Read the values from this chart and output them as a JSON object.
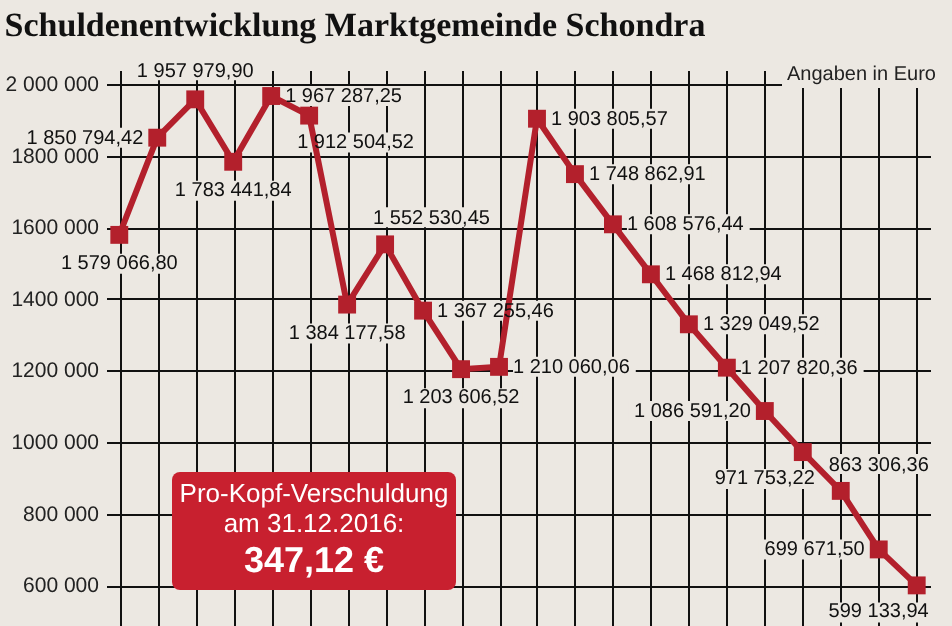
{
  "chart_data": {
    "type": "line",
    "title": "Schuldenentwicklung Marktgemeinde Schondra",
    "categories": [
      null,
      null,
      null,
      null,
      null,
      null,
      null,
      null,
      null,
      null,
      null,
      null,
      null,
      null,
      null,
      null,
      null,
      null,
      null,
      null,
      null,
      null
    ],
    "series": [
      {
        "color": "#b3202c",
        "values": [
          1579066.8,
          1850794.42,
          1957979.9,
          1783441.84,
          1967287.25,
          1912504.52,
          1384177.58,
          1552530.45,
          1367255.46,
          1203606.52,
          1210060.06,
          1903805.57,
          1748862.91,
          1608576.44,
          1468812.94,
          1329049.52,
          1207820.36,
          1086591.2,
          971753.22,
          863306.36,
          699671.5,
          599133.94
        ],
        "value_labels": [
          "1 579 066,80",
          "1 850 794,42",
          "1 957 979,90",
          "1 783 441,84",
          "1 967 287,25",
          "1 912 504,52",
          "1 384 177,58",
          "1 552 530,45",
          "1 367 255,46",
          "1 203 606,52",
          "1 210 060,06",
          "1 903 805,57",
          "1 748 862,91",
          "1 608 576,44",
          "1 468 812,94",
          "1 329 049,52",
          "1 207 820,36",
          "1 086 591,20",
          "971 753,22",
          "863 306,36",
          "699 671,50",
          "599 133,94"
        ]
      }
    ],
    "ylim": [
      480000,
      2040000
    ],
    "yticks": [
      {
        "value": 600000,
        "label": "600 000"
      },
      {
        "value": 800000,
        "label": "800 000"
      },
      {
        "value": 1000000,
        "label": "1000 000"
      },
      {
        "value": 1200000,
        "label": "1200 000"
      },
      {
        "value": 1400000,
        "label": "1400 000"
      },
      {
        "value": 1600000,
        "label": "1600 000"
      },
      {
        "value": 1800000,
        "label": "1800 000"
      },
      {
        "value": 2000000,
        "label": "2 000 000"
      }
    ],
    "grid": true,
    "marker": "square",
    "annotations": [
      "Angaben in Euro",
      "Pro-Kopf-Verschuldung",
      "am 31.12.2016:",
      "347,12 €"
    ]
  }
}
